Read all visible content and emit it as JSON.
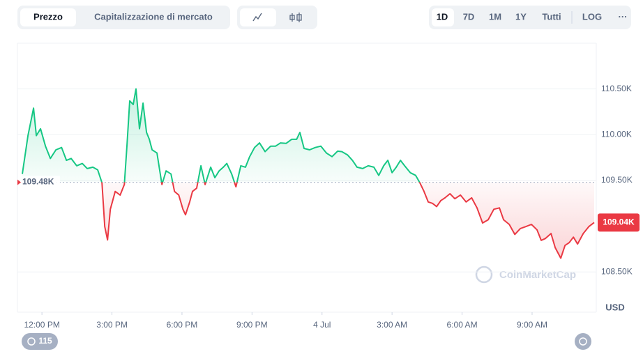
{
  "toolbar": {
    "tabs": [
      "Prezzo",
      "Capitalizzazione di mercato"
    ],
    "ranges": [
      "1D",
      "7D",
      "1M",
      "1Y",
      "Tutti"
    ],
    "log": "LOG",
    "more": "···"
  },
  "currency": "USD",
  "watermark": "CoinMarketCap",
  "badge": "115",
  "chart_data": {
    "type": "line",
    "x": [
      -0.84,
      -0.6,
      -0.36,
      -0.24,
      -0.06,
      0.15,
      0.36,
      0.6,
      0.84,
      1.05,
      1.25,
      1.49,
      1.73,
      1.94,
      2.18,
      2.39,
      2.57,
      2.69,
      2.81,
      2.93,
      3.14,
      3.35,
      3.53,
      3.65,
      3.76,
      3.91,
      4.03,
      4.18,
      4.33,
      4.48,
      4.6,
      4.72,
      4.93,
      5.14,
      5.32,
      5.53,
      5.68,
      5.86,
      6.04,
      6.15,
      6.33,
      6.45,
      6.63,
      6.81,
      6.99,
      7.23,
      7.41,
      7.59,
      7.77,
      7.92,
      8.13,
      8.31,
      8.52,
      8.72,
      8.9,
      9.11,
      9.32,
      9.56,
      9.8,
      10.01,
      10.22,
      10.46,
      10.7,
      10.91,
      11.05,
      11.23,
      11.47,
      11.71,
      11.95,
      12.19,
      12.43,
      12.67,
      12.85,
      13.09,
      13.3,
      13.5,
      13.74,
      13.98,
      14.22,
      14.43,
      14.64,
      14.82,
      15.0,
      15.18,
      15.36,
      15.54,
      15.78,
      16.01,
      16.19,
      16.37,
      16.55,
      16.73,
      16.91,
      17.09,
      17.27,
      17.48,
      17.69,
      17.93,
      18.17,
      18.41,
      18.64,
      18.88,
      19.12,
      19.36,
      19.6,
      19.78,
      20.02,
      20.26,
      20.5,
      20.73,
      20.97,
      21.21,
      21.39,
      21.57,
      21.81,
      21.99,
      22.23,
      22.41,
      22.59,
      22.77,
      22.95,
      23.19,
      23.43,
      23.66
    ],
    "series": [
      {
        "values": [
          109570,
          109990,
          110290,
          109990,
          110065,
          109875,
          109740,
          109835,
          109860,
          109720,
          109740,
          109660,
          109685,
          109630,
          109645,
          109615,
          109475,
          108995,
          108850,
          109185,
          109380,
          109340,
          109455,
          109910,
          110370,
          110330,
          110500,
          110065,
          110345,
          110025,
          109950,
          109835,
          109800,
          109455,
          109605,
          109570,
          109380,
          109340,
          109185,
          109125,
          109265,
          109380,
          109415,
          109660,
          109455,
          109645,
          109530,
          109605,
          109645,
          109685,
          109570,
          109430,
          109660,
          109645,
          109760,
          109860,
          109910,
          109815,
          109875,
          109875,
          109910,
          109905,
          109950,
          109950,
          110025,
          109850,
          109835,
          109860,
          109875,
          109800,
          109760,
          109820,
          109815,
          109780,
          109720,
          109645,
          109630,
          109660,
          109645,
          109555,
          109660,
          109720,
          109585,
          109645,
          109720,
          109660,
          109585,
          109555,
          109475,
          109380,
          109265,
          109250,
          109215,
          109280,
          109310,
          109355,
          109300,
          109340,
          109265,
          109310,
          109200,
          109035,
          109070,
          109185,
          109200,
          109070,
          109020,
          108910,
          108975,
          108995,
          109020,
          108960,
          108845,
          108865,
          108920,
          108765,
          108650,
          108790,
          108820,
          108880,
          108805,
          108920,
          108995,
          109040
        ],
        "color_above": "#16c784",
        "color_below": "#ea3943"
      }
    ],
    "baseline": {
      "value": 109480,
      "label": "109.48K"
    },
    "last": {
      "value": 109040,
      "label": "109.04K"
    },
    "xlim": [
      -1.05,
      23.75
    ],
    "xticks": [
      {
        "value": 0,
        "label": "12:00 PM"
      },
      {
        "value": 3,
        "label": "3:00 PM"
      },
      {
        "value": 6,
        "label": "6:00 PM"
      },
      {
        "value": 9,
        "label": "9:00 PM"
      },
      {
        "value": 12,
        "label": "4 Jul"
      },
      {
        "value": 15,
        "label": "3:00 AM"
      },
      {
        "value": 18,
        "label": "6:00 AM"
      },
      {
        "value": 21,
        "label": "9:00 AM"
      }
    ],
    "ylim": [
      108060,
      111000
    ],
    "yticks": [
      {
        "value": 108500,
        "label": "108.50K"
      },
      {
        "value": 109500,
        "label": "109.50K"
      },
      {
        "value": 110000,
        "label": "110.00K"
      },
      {
        "value": 110500,
        "label": "110.50K"
      }
    ],
    "grid": true
  }
}
